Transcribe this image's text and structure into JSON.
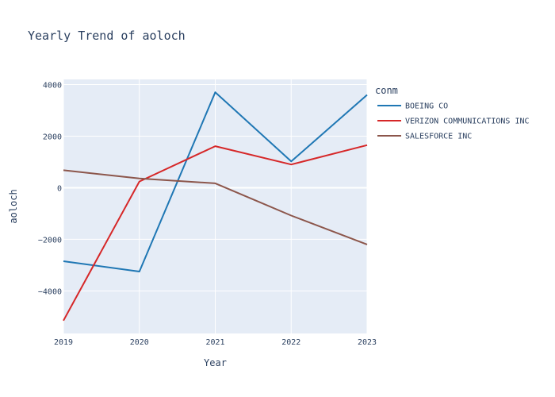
{
  "chart_data": {
    "type": "line",
    "title": "Yearly Trend of aoloch",
    "xlabel": "Year",
    "ylabel": "aoloch",
    "x": [
      2019,
      2020,
      2021,
      2022,
      2023
    ],
    "x_tick_labels": [
      "2019",
      "2020",
      "2021",
      "2022",
      "2023"
    ],
    "y_ticks": [
      4000,
      2000,
      0,
      -2000,
      -4000
    ],
    "y_tick_labels": [
      "4000",
      "2000",
      "0",
      "−2000",
      "−4000"
    ],
    "ylim": [
      -5650,
      4200
    ],
    "xlim": [
      2019,
      2023
    ],
    "grid": true,
    "legend_title": "conm",
    "legend_position": "right",
    "plot_background": "#e5ecf6",
    "series": [
      {
        "name": "BOEING CO",
        "color": "#1f77b4",
        "values": [
          -2850,
          -3250,
          3700,
          1020,
          3600
        ]
      },
      {
        "name": "VERIZON COMMUNICATIONS INC",
        "color": "#d62728",
        "values": [
          -5150,
          240,
          1610,
          900,
          1650
        ]
      },
      {
        "name": "SALESFORCE INC",
        "color": "#8c564b",
        "values": [
          680,
          360,
          170,
          -1080,
          -2200
        ]
      }
    ]
  }
}
